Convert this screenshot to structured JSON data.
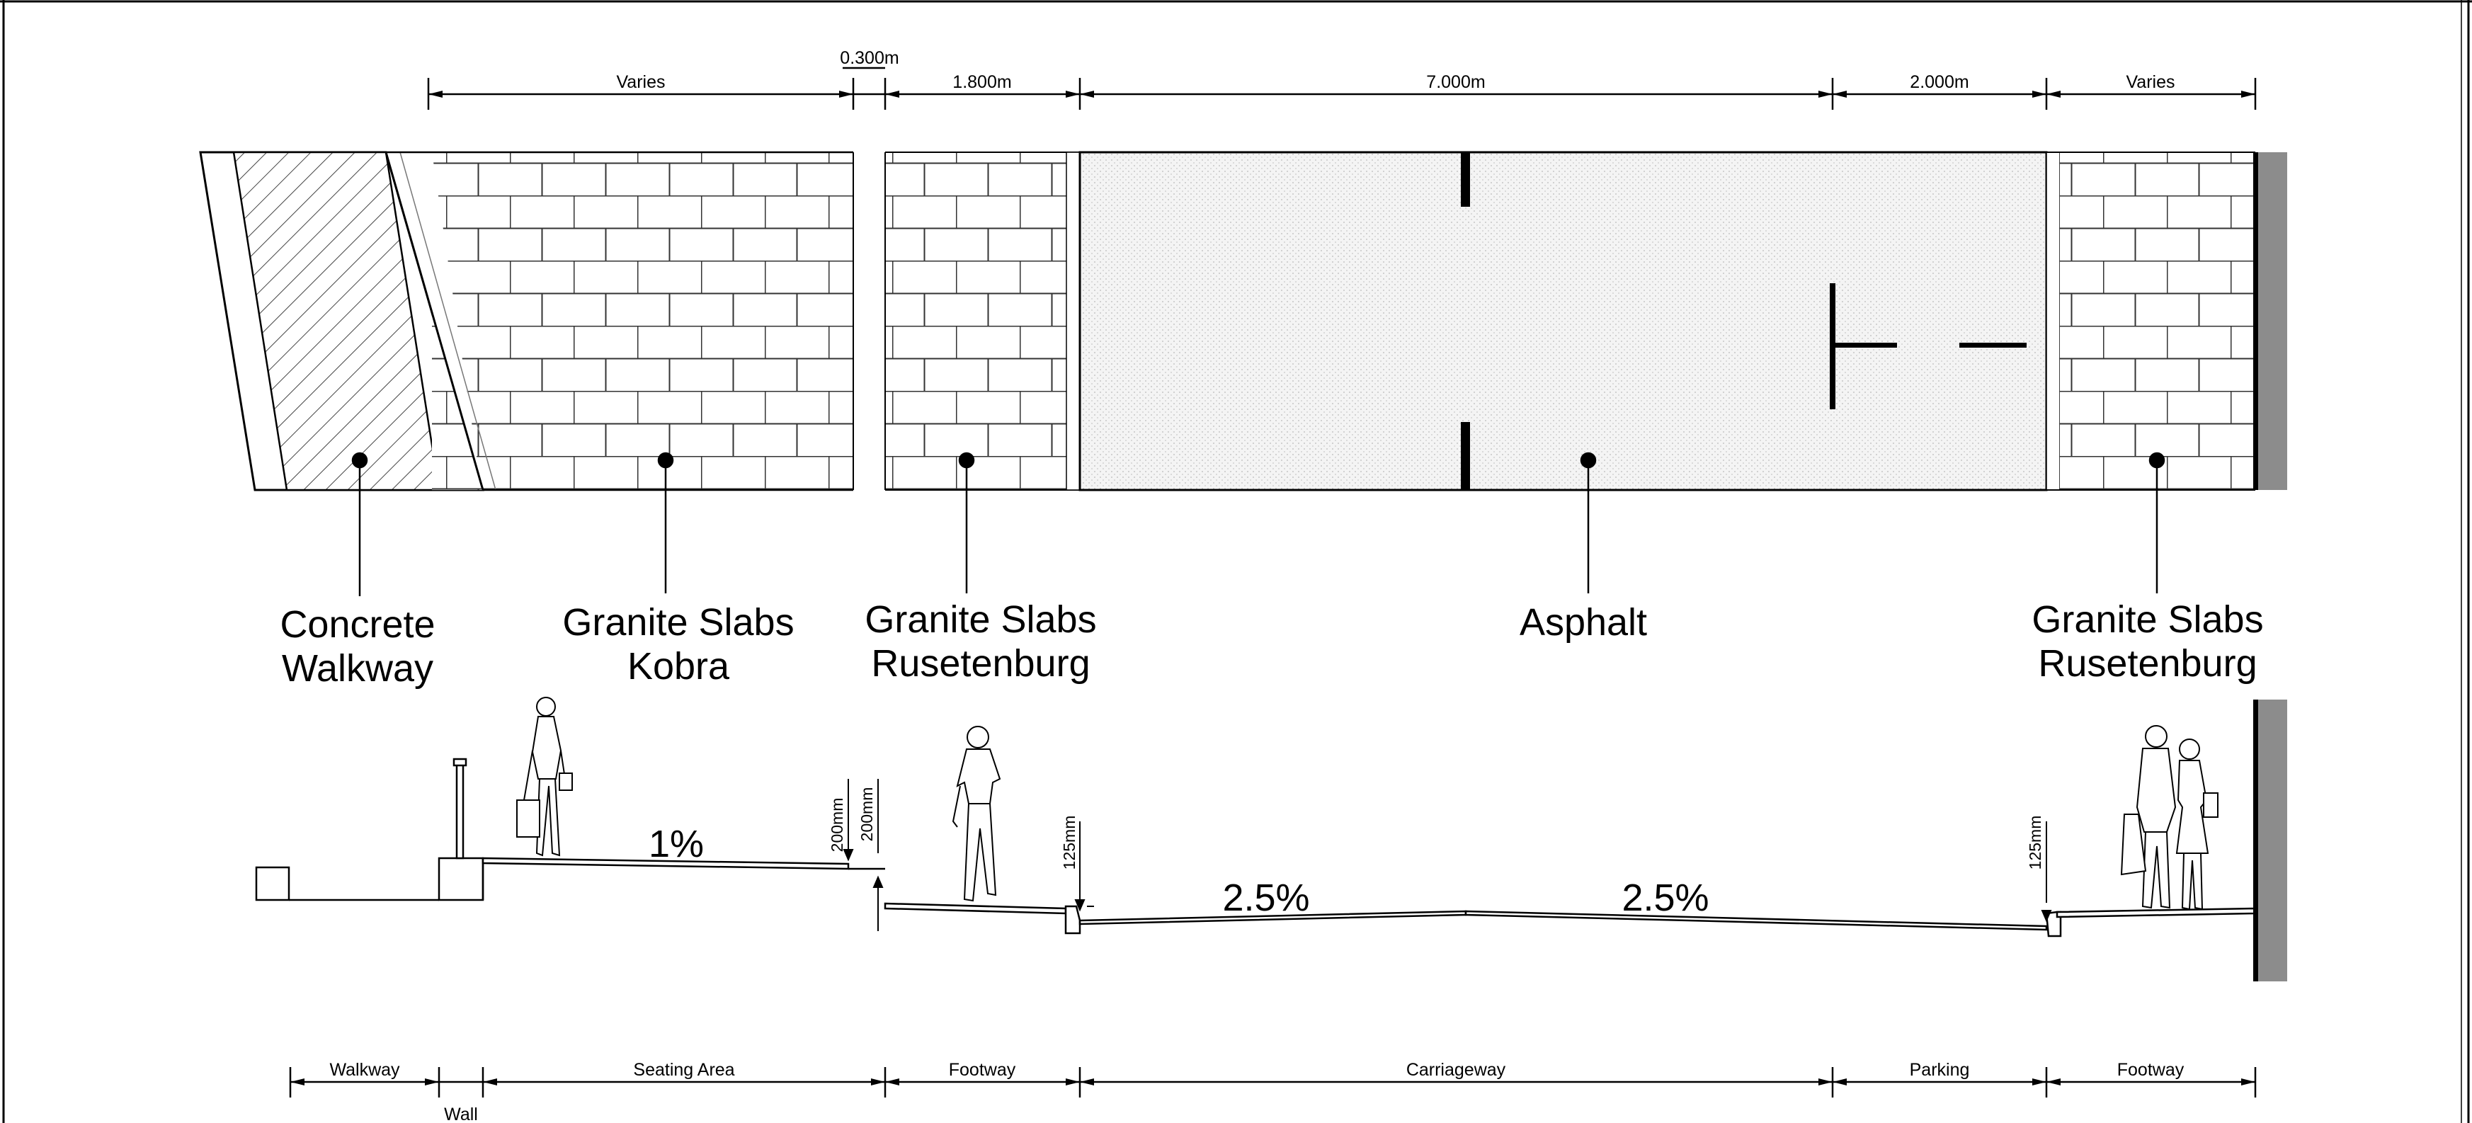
{
  "top_dimensions": [
    "Varies",
    "0.300m",
    "1.800m",
    "7.000m",
    "2.000m",
    "Varies"
  ],
  "materials": {
    "concrete_walkway": [
      "Concrete",
      "Walkway"
    ],
    "granite_kobra": [
      "Granite Slabs",
      "Kobra"
    ],
    "granite_rusetenburg_left": [
      "Granite Slabs",
      "Rusetenburg"
    ],
    "asphalt": [
      "Asphalt"
    ],
    "granite_rusetenburg_right": [
      "Granite Slabs",
      "Rusetenburg"
    ]
  },
  "section": {
    "slopes": [
      "1%",
      "2.5%",
      "2.5%"
    ],
    "levels": [
      "200mm",
      "200mm",
      "125mm",
      "125mm"
    ]
  },
  "bottom_dimensions": [
    "Walkway",
    "Seating Area",
    "Footway",
    "Carriageway",
    "Parking",
    "Footway"
  ],
  "wall_label": "Wall",
  "colors": {
    "line": "#000000",
    "wall_fill": "#8c8c8c",
    "asphalt_fill": "#f2f2f2"
  }
}
